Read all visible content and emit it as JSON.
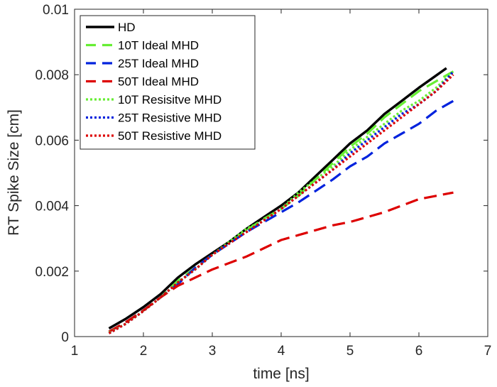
{
  "chart_data": {
    "type": "line",
    "title": "",
    "xlabel": "time [ns]",
    "ylabel": "RT Spike Size [cm]",
    "xlim": [
      1,
      7
    ],
    "ylim": [
      0,
      0.01
    ],
    "xticks": [
      1,
      2,
      3,
      4,
      5,
      6,
      7
    ],
    "yticks": [
      0,
      0.002,
      0.004,
      0.006,
      0.008,
      0.01
    ],
    "xtick_labels": [
      "1",
      "2",
      "3",
      "4",
      "5",
      "6",
      "7"
    ],
    "ytick_labels": [
      "0",
      "0.002",
      "0.004",
      "0.006",
      "0.008",
      "0.01"
    ],
    "grid": false,
    "legend_position": "top-left",
    "series": [
      {
        "name": "HD",
        "color": "#000000",
        "dash": "solid",
        "x": [
          1.5,
          1.75,
          2.0,
          2.25,
          2.5,
          2.75,
          3.0,
          3.25,
          3.5,
          3.75,
          4.0,
          4.25,
          4.5,
          4.75,
          5.0,
          5.25,
          5.5,
          5.75,
          6.0,
          6.2,
          6.4
        ],
        "y": [
          0.00025,
          0.00055,
          0.0009,
          0.0013,
          0.0018,
          0.0022,
          0.00255,
          0.0029,
          0.0033,
          0.00365,
          0.004,
          0.0044,
          0.0049,
          0.0054,
          0.0059,
          0.0063,
          0.0068,
          0.0072,
          0.0076,
          0.0079,
          0.0082
        ]
      },
      {
        "name": "10T Ideal MHD",
        "color": "#66ee33",
        "dash": "dash",
        "x": [
          1.5,
          1.75,
          2.0,
          2.25,
          2.5,
          2.75,
          3.0,
          3.25,
          3.5,
          3.75,
          4.0,
          4.25,
          4.5,
          4.75,
          5.0,
          5.25,
          5.5,
          5.75,
          6.0,
          6.25,
          6.5
        ],
        "y": [
          0.00015,
          0.00045,
          0.0008,
          0.0012,
          0.0017,
          0.0021,
          0.0025,
          0.00285,
          0.00325,
          0.0036,
          0.0039,
          0.0043,
          0.0048,
          0.0053,
          0.0058,
          0.0062,
          0.0067,
          0.0071,
          0.0075,
          0.0078,
          0.0081
        ]
      },
      {
        "name": "25T Ideal MHD",
        "color": "#0022dd",
        "dash": "dash",
        "x": [
          1.5,
          1.75,
          2.0,
          2.25,
          2.5,
          2.75,
          3.0,
          3.25,
          3.5,
          3.75,
          4.0,
          4.25,
          4.5,
          4.75,
          5.0,
          5.25,
          5.5,
          5.75,
          6.0,
          6.25,
          6.5
        ],
        "y": [
          0.00015,
          0.00045,
          0.0008,
          0.0012,
          0.0016,
          0.0021,
          0.0025,
          0.00285,
          0.0032,
          0.0035,
          0.0038,
          0.0041,
          0.00445,
          0.0048,
          0.0052,
          0.0055,
          0.0059,
          0.0062,
          0.0065,
          0.0069,
          0.0072
        ]
      },
      {
        "name": "50T Ideal MHD",
        "color": "#dd0000",
        "dash": "dash",
        "x": [
          1.5,
          1.75,
          2.0,
          2.25,
          2.5,
          2.75,
          3.0,
          3.25,
          3.5,
          3.75,
          4.0,
          4.25,
          4.5,
          4.75,
          5.0,
          5.25,
          5.5,
          5.75,
          6.0,
          6.25,
          6.5
        ],
        "y": [
          0.00015,
          0.00045,
          0.0008,
          0.0012,
          0.00155,
          0.0018,
          0.00205,
          0.00225,
          0.00245,
          0.0027,
          0.00295,
          0.0031,
          0.00325,
          0.0034,
          0.0035,
          0.00365,
          0.0038,
          0.004,
          0.0042,
          0.0043,
          0.0044
        ]
      },
      {
        "name": "10T Resisitve MHD",
        "color": "#66ee33",
        "dash": "dot",
        "x": [
          1.5,
          1.75,
          2.0,
          2.25,
          2.5,
          2.75,
          3.0,
          3.25,
          3.5,
          3.75,
          4.0,
          4.25,
          4.5,
          4.75,
          5.0,
          5.25,
          5.5,
          5.75,
          6.0,
          6.25,
          6.5
        ],
        "y": [
          0.00012,
          0.0004,
          0.00078,
          0.0012,
          0.00165,
          0.00205,
          0.0025,
          0.0029,
          0.0033,
          0.00355,
          0.0039,
          0.0044,
          0.0048,
          0.0052,
          0.0057,
          0.0061,
          0.0065,
          0.0069,
          0.0072,
          0.0076,
          0.0081
        ]
      },
      {
        "name": "25T Resistive MHD",
        "color": "#0022dd",
        "dash": "dot",
        "x": [
          1.5,
          1.75,
          2.0,
          2.25,
          2.5,
          2.75,
          3.0,
          3.25,
          3.5,
          3.75,
          4.0,
          4.25,
          4.5,
          4.75,
          5.0,
          5.25,
          5.5,
          5.75,
          6.0,
          6.25,
          6.5
        ],
        "y": [
          0.0001,
          0.0004,
          0.00078,
          0.0012,
          0.00165,
          0.00205,
          0.0025,
          0.00285,
          0.0032,
          0.00355,
          0.0039,
          0.0043,
          0.0047,
          0.0051,
          0.0056,
          0.006,
          0.0064,
          0.0068,
          0.0071,
          0.0075,
          0.0081
        ]
      },
      {
        "name": "50T Resistive MHD",
        "color": "#dd0000",
        "dash": "dot",
        "x": [
          1.5,
          1.75,
          2.0,
          2.25,
          2.5,
          2.75,
          3.0,
          3.25,
          3.5,
          3.75,
          4.0,
          4.25,
          4.5,
          4.75,
          5.0,
          5.25,
          5.5,
          5.75,
          6.0,
          6.25,
          6.5
        ],
        "y": [
          0.0001,
          0.0004,
          0.00078,
          0.0012,
          0.00165,
          0.00205,
          0.0025,
          0.00285,
          0.0032,
          0.00355,
          0.0039,
          0.0043,
          0.0047,
          0.0051,
          0.0055,
          0.0059,
          0.0063,
          0.0067,
          0.0071,
          0.0075,
          0.008
        ]
      }
    ]
  }
}
